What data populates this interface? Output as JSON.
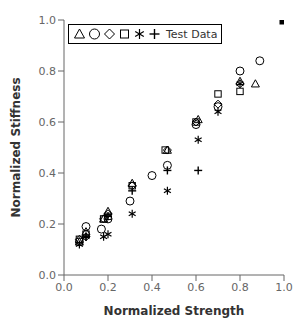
{
  "chart_data": {
    "type": "scatter",
    "title": "",
    "xlabel": "Normalized Strength",
    "ylabel": "Normalized Stiffness",
    "xlim": [
      0,
      1.0
    ],
    "ylim": [
      0,
      1.0
    ],
    "xticks": [
      {
        "value": 0,
        "label": "0.0"
      },
      0.2,
      0.4,
      0.6,
      0.8,
      {
        "value": 1.0,
        "label": "1.0"
      }
    ],
    "yticks": [
      {
        "value": 0,
        "label": "0.0"
      },
      0.2,
      0.4,
      0.6,
      0.8,
      {
        "value": 1.0,
        "label": "1.0"
      }
    ],
    "grid": false,
    "legend": "upper left",
    "legend_label": "Test Data",
    "series": [
      {
        "marker": "triangle",
        "color": "#000000",
        "x": [
          0.07,
          0.1,
          0.18,
          0.2,
          0.31,
          0.47,
          0.61,
          0.8,
          0.87
        ],
        "values": [
          0.13,
          0.17,
          0.22,
          0.25,
          0.36,
          0.49,
          0.61,
          0.76,
          0.75
        ]
      },
      {
        "marker": "circle",
        "color": "#000000",
        "x": [
          0.07,
          0.1,
          0.17,
          0.2,
          0.3,
          0.4,
          0.47,
          0.6,
          0.7,
          0.8,
          0.89
        ],
        "values": [
          0.13,
          0.19,
          0.18,
          0.22,
          0.29,
          0.39,
          0.43,
          0.59,
          0.66,
          0.8,
          0.84
        ]
      },
      {
        "marker": "diamond",
        "color": "#000000",
        "x": [
          0.07,
          0.1,
          0.18,
          0.2,
          0.31,
          0.47,
          0.6,
          0.7,
          0.8
        ],
        "values": [
          0.14,
          0.15,
          0.22,
          0.24,
          0.35,
          0.49,
          0.6,
          0.67,
          0.75
        ]
      },
      {
        "marker": "square",
        "color": "#000000",
        "x": [
          0.07,
          0.1,
          0.18,
          0.2,
          0.31,
          0.46,
          0.6,
          0.7,
          0.8
        ],
        "values": [
          0.14,
          0.16,
          0.22,
          0.23,
          0.35,
          0.49,
          0.6,
          0.71,
          0.72
        ]
      },
      {
        "marker": "asterisk",
        "color": "#000000",
        "x": [
          0.07,
          0.1,
          0.18,
          0.2,
          0.31,
          0.47,
          0.61,
          0.7,
          0.8
        ],
        "values": [
          0.12,
          0.15,
          0.15,
          0.16,
          0.24,
          0.33,
          0.53,
          0.64,
          0.75
        ]
      },
      {
        "marker": "plus",
        "color": "#000000",
        "x": [
          0.1,
          0.2,
          0.31,
          0.47,
          0.61
        ],
        "values": [
          0.15,
          0.23,
          0.33,
          0.41,
          0.41
        ]
      }
    ],
    "marked_point": {
      "marker": "filled_square",
      "color": "#000000",
      "x": 1.0,
      "y": 1.0
    }
  }
}
